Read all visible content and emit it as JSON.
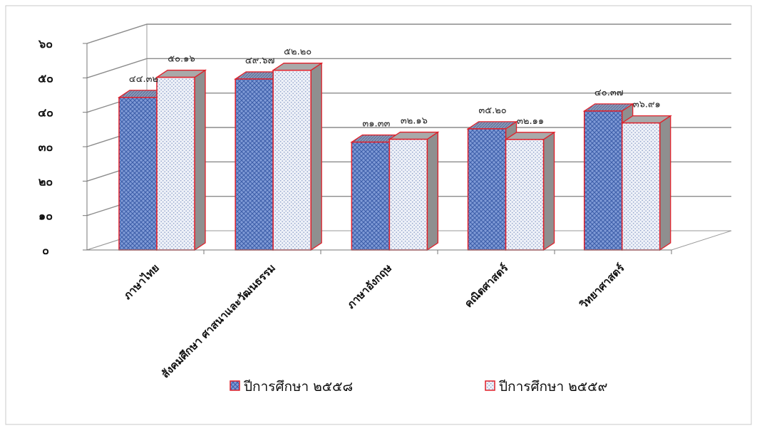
{
  "chart_data": {
    "type": "bar",
    "categories": [
      "ภาษาไทย",
      "สังคมศึกษา ศาสนาและวัฒนธรรม",
      "ภาษาอังกฤษ",
      "คณิตศาสตร์",
      "วิทยาศาสตร์"
    ],
    "series": [
      {
        "name": "ปีการศึกษา ๒๕๕๘",
        "values": [
          44.32,
          49.67,
          31.33,
          35.2,
          40.37
        ],
        "labels": [
          "๔๔.๓๒",
          "๔๙.๖๗",
          "๓๑.๓๓",
          "๓๕.๒๐",
          "๔๐.๓๗"
        ],
        "color": "#4a6fc0"
      },
      {
        "name": "ปีการศึกษา ๒๕๕๙",
        "values": [
          50.16,
          52.2,
          32.16,
          32.11,
          36.91
        ],
        "labels": [
          "๕๐.๑๖",
          "๕๒.๒๐",
          "๓๒.๑๖",
          "๓๒.๑๑",
          "๓๖.๙๑"
        ],
        "color": "#c8d2e8"
      }
    ],
    "ylim": [
      0,
      60
    ],
    "yticks": [
      0,
      10,
      20,
      30,
      40,
      50,
      60
    ],
    "yticklabels": [
      "๐",
      "๑๐",
      "๒๐",
      "๓๐",
      "๔๐",
      "๕๐",
      "๖๐"
    ],
    "grid": true,
    "legend_position": "bottom",
    "edge_color": "#e0202a",
    "three_d": true
  }
}
